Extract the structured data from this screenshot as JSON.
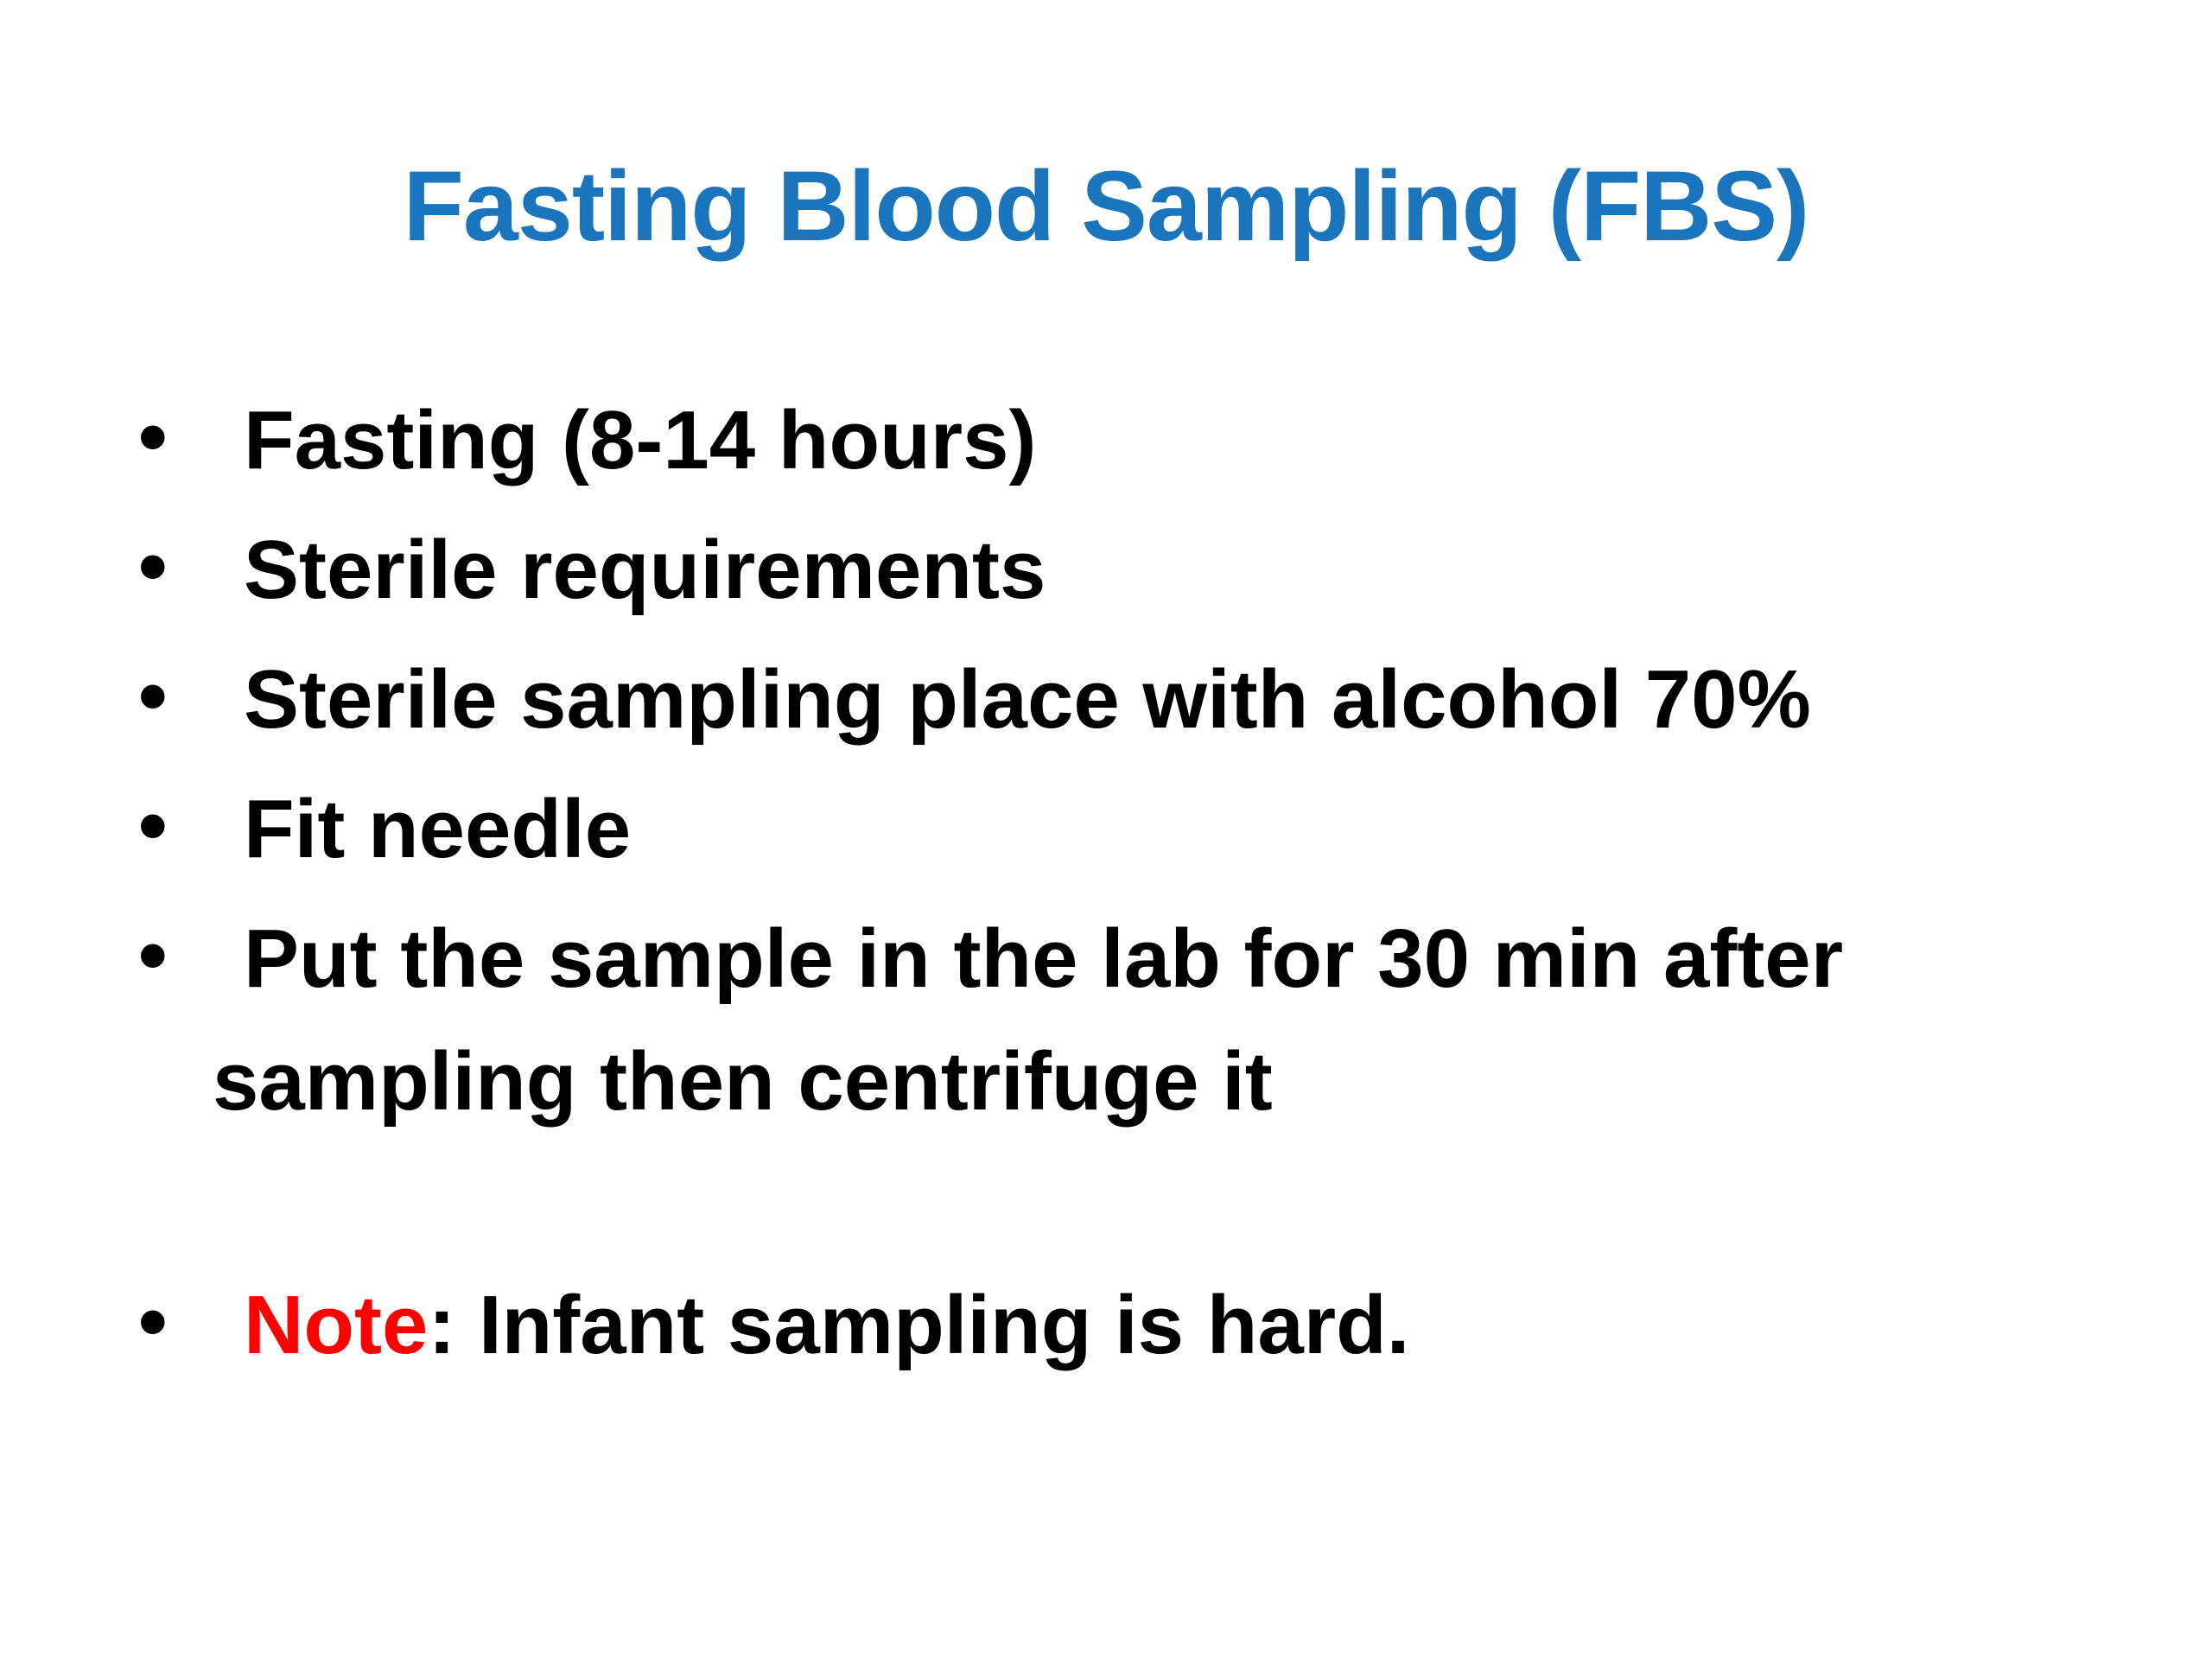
{
  "slide": {
    "title": "Fasting Blood Sampling (FBS)",
    "bullets": [
      "Fasting (8-14 hours)",
      "Sterile requirements",
      "Sterile sampling place with alcohol 70%",
      "Fit needle",
      "Put the sample in the lab for 30 min after sampling then centrifuge it"
    ],
    "note": {
      "label": "Note",
      "text": ": Infant sampling is hard."
    },
    "colors": {
      "title_blue": "#1B75BC",
      "note_red": "#FF0000",
      "body_black": "#000000",
      "background": "#FFFFFF"
    }
  }
}
